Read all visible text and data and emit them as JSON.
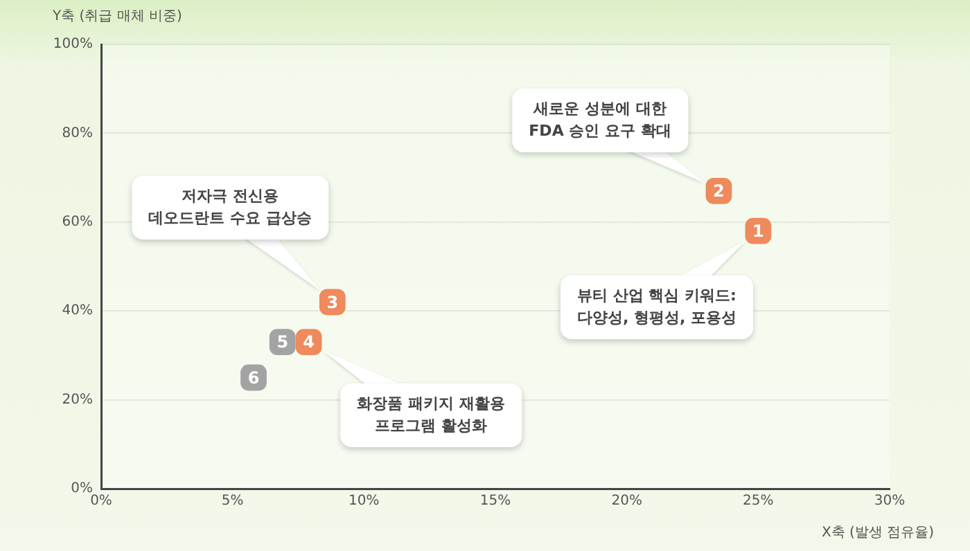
{
  "chart_data": {
    "type": "scatter",
    "xlabel": "X축 (발생 점유율)",
    "ylabel": "Y축 (취급 매체 비중)",
    "series": [
      {
        "name": "1",
        "color": "#ee8a5c",
        "x": [
          25
        ],
        "values": [
          58
        ]
      },
      {
        "name": "2",
        "color": "#ee8a5c",
        "x": [
          23.5
        ],
        "values": [
          67
        ]
      },
      {
        "name": "3",
        "color": "#ee8a5c",
        "x": [
          8.8
        ],
        "values": [
          42
        ]
      },
      {
        "name": "4",
        "color": "#ee8a5c",
        "x": [
          7.9
        ],
        "values": [
          33
        ]
      },
      {
        "name": "5",
        "color": "#a3a3a3",
        "x": [
          6.9
        ],
        "values": [
          33
        ]
      },
      {
        "name": "6",
        "color": "#a3a3a3",
        "x": [
          5.8
        ],
        "values": [
          25
        ]
      }
    ],
    "marker": "square",
    "xlim": [
      0,
      30
    ],
    "xticks": [
      {
        "value": 0,
        "label": "0%"
      },
      {
        "value": 5,
        "label": "5%"
      },
      {
        "value": 10,
        "label": "10%"
      },
      {
        "value": 15,
        "label": "15%"
      },
      {
        "value": 20,
        "label": "20%"
      },
      {
        "value": 25,
        "label": "25%"
      },
      {
        "value": 30,
        "label": "30%"
      }
    ],
    "ylim": [
      0,
      100
    ],
    "yticks": [
      {
        "value": 0,
        "label": "0%"
      },
      {
        "value": 20,
        "label": "20%"
      },
      {
        "value": 40,
        "label": "40%"
      },
      {
        "value": 60,
        "label": "60%"
      },
      {
        "value": 80,
        "label": "80%"
      },
      {
        "value": 100,
        "label": "100%"
      }
    ],
    "grid": "y",
    "annotations": [
      "새로운 성분에 대한\nFDA 승인 요구 확대",
      "저자극 전신용\n데오드란트 수요 급상승",
      "뷰티 산업 핵심 키워드:\n다양성, 형평성, 포용성",
      "화장품 패키지 재활용\n프로그램 활성화"
    ]
  }
}
